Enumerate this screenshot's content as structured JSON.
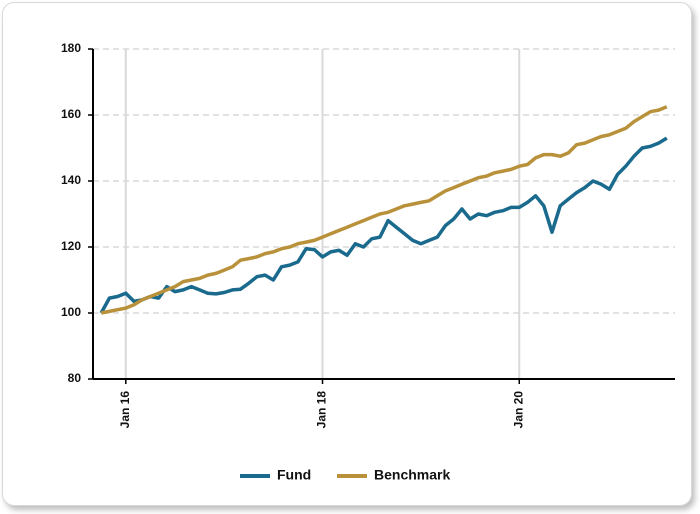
{
  "chart_data": {
    "type": "line",
    "x": [
      "2015-10",
      "2015-11",
      "2015-12",
      "2016-01",
      "2016-02",
      "2016-03",
      "2016-04",
      "2016-05",
      "2016-06",
      "2016-07",
      "2016-08",
      "2016-09",
      "2016-10",
      "2016-11",
      "2016-12",
      "2017-01",
      "2017-02",
      "2017-03",
      "2017-04",
      "2017-05",
      "2017-06",
      "2017-07",
      "2017-08",
      "2017-09",
      "2017-10",
      "2017-11",
      "2017-12",
      "2018-01",
      "2018-02",
      "2018-03",
      "2018-04",
      "2018-05",
      "2018-06",
      "2018-07",
      "2018-08",
      "2018-09",
      "2018-10",
      "2018-11",
      "2018-12",
      "2019-01",
      "2019-02",
      "2019-03",
      "2019-04",
      "2019-05",
      "2019-06",
      "2019-07",
      "2019-08",
      "2019-09",
      "2019-10",
      "2019-11",
      "2019-12",
      "2020-01",
      "2020-02",
      "2020-03",
      "2020-04",
      "2020-05",
      "2020-06",
      "2020-07",
      "2020-08",
      "2020-09",
      "2020-10",
      "2020-11",
      "2020-12",
      "2021-01",
      "2021-02",
      "2021-03",
      "2021-04",
      "2021-05",
      "2021-06",
      "2021-07"
    ],
    "series": [
      {
        "name": "Fund",
        "color": "#1a6a8e",
        "values": [
          100,
          104.5,
          105,
          106,
          103.5,
          104,
          105,
          104.5,
          108,
          106.5,
          107,
          108,
          107,
          106,
          105.8,
          106.2,
          107,
          107.2,
          109,
          111,
          111.5,
          110,
          114,
          114.5,
          115.5,
          119.5,
          119.2,
          117,
          118.5,
          119,
          117.5,
          121,
          120,
          122.5,
          123,
          128,
          126,
          124,
          122,
          121,
          122,
          123,
          126.5,
          128.5,
          131.5,
          128.5,
          130,
          129.5,
          130.5,
          131,
          132,
          132,
          133.5,
          135.5,
          132.5,
          124.5,
          132.5,
          134.5,
          136.5,
          138,
          140,
          139,
          137.5,
          142,
          144.5,
          147.5,
          150,
          150.5,
          151.5,
          153
        ]
      },
      {
        "name": "Benchmark",
        "color": "#b8913a",
        "values": [
          100,
          100.5,
          101,
          101.5,
          102.5,
          104,
          105,
          106,
          107,
          108,
          109.5,
          110,
          110.5,
          111.5,
          112,
          113,
          114,
          116,
          116.5,
          117,
          118,
          118.5,
          119.5,
          120,
          121,
          121.5,
          122,
          123,
          124,
          125,
          126,
          127,
          128,
          129,
          130,
          130.5,
          131.5,
          132.5,
          133,
          133.5,
          134,
          135.5,
          137,
          138,
          139,
          140,
          141,
          141.5,
          142.5,
          143,
          143.5,
          144.5,
          145,
          147,
          148,
          148,
          147.5,
          148.5,
          151,
          151.5,
          152.5,
          153.5,
          154,
          155,
          156,
          158,
          159.5,
          161,
          161.5,
          162.5
        ]
      }
    ],
    "xlim": [
      "2015-09",
      "2021-08"
    ],
    "xticks": [
      {
        "value": "2016-01",
        "label": "Jan 16"
      },
      {
        "value": "2018-01",
        "label": "Jan 18"
      },
      {
        "value": "2020-01",
        "label": "Jan 20"
      }
    ],
    "ylim": [
      80,
      180
    ],
    "yticks": [
      80,
      100,
      120,
      140,
      160,
      180
    ],
    "grid": true,
    "legend": "bottom"
  }
}
